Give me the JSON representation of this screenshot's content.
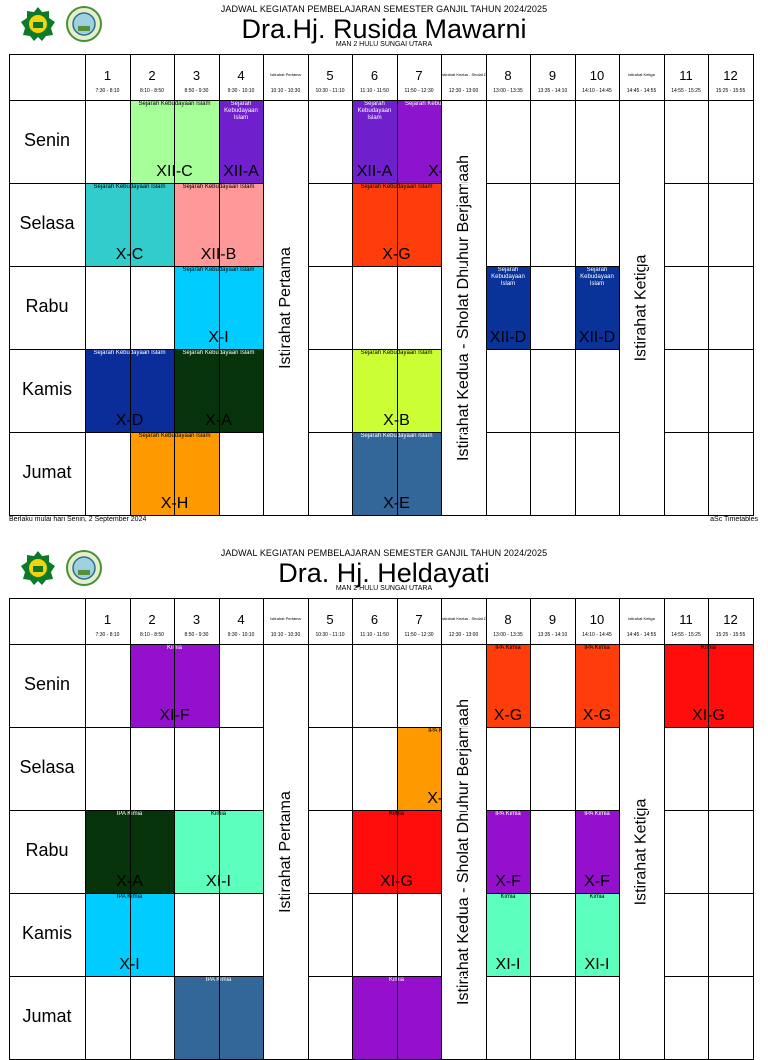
{
  "header_title": "JADWAL KEGIATAN PEMBELAJARAN  SEMESTER GANJIL TAHUN 2024/2025",
  "school": "MAN 2 HULU SUNGAI UTARA",
  "days": [
    "Senin",
    "Selasa",
    "Rabu",
    "Kamis",
    "Jumat"
  ],
  "periods": [
    {
      "label": "1",
      "time": "7:30 - 8:10"
    },
    {
      "label": "2",
      "time": "8:10 - 8:50"
    },
    {
      "label": "3",
      "time": "8:50 - 9:30"
    },
    {
      "label": "4",
      "time": "9:30 - 10:10"
    },
    {
      "break": "Istirahat Pertama",
      "time": "10:10 - 10:30"
    },
    {
      "label": "5",
      "time": "10:30 - 11:10"
    },
    {
      "label": "6",
      "time": "11:10 - 11:50"
    },
    {
      "label": "7",
      "time": "11:50 - 12:30"
    },
    {
      "break": "Istirahat Kedua - Sholat Dhuhur",
      "time": "12:30 - 13:00"
    },
    {
      "label": "8",
      "time": "13:00 - 13:35"
    },
    {
      "label": "9",
      "time": "13:35 - 14:10"
    },
    {
      "label": "10",
      "time": "14:10 - 14:45"
    },
    {
      "break": "Istirahat Ketiga",
      "time": "14:45 - 14:55"
    },
    {
      "label": "11",
      "time": "14:55 - 15:25"
    },
    {
      "label": "12",
      "time": "15:25 - 15:55"
    }
  ],
  "break_labels": {
    "pertama": "Istirahat Pertama",
    "kedua": "Istirahat Kedua - Sholat Dhuhur  Berjamaah",
    "ketiga": "Istirahat Ketiga"
  },
  "footer": {
    "left": "Berlaku mulai hari Senin, 2 September 2024",
    "right": "aSc Timetables"
  },
  "timetables": [
    {
      "teacher": "Dra.Hj. Rusida Mawarni",
      "lessons": [
        {
          "day": 0,
          "col": 1,
          "span": 2,
          "subject": "Sejarah Kebudayaan Islam",
          "class": "XII-C",
          "color": "#a6ff99"
        },
        {
          "day": 0,
          "col": 3,
          "span": 1,
          "subject": "Sejarah Kebudayaan Islam",
          "class": "XII-A",
          "color": "#6f1fcc"
        },
        {
          "day": 0,
          "col": 5,
          "span": 1,
          "subject": "Sejarah Kebudayaan Islam",
          "class": "XII-A",
          "color": "#6f1fcc"
        },
        {
          "day": 0,
          "col": 6,
          "span": 2,
          "subject": "Sejarah Kebudayaan Islam",
          "class": "X-F",
          "color": "#8b14cc"
        },
        {
          "day": 1,
          "col": 0,
          "span": 2,
          "subject": "Sejarah Kebudayaan Islam",
          "class": "X-C",
          "color": "#33cccc"
        },
        {
          "day": 1,
          "col": 2,
          "span": 2,
          "subject": "Sejarah Kebudayaan Islam",
          "class": "XII-B",
          "color": "#ff9999"
        },
        {
          "day": 1,
          "col": 5,
          "span": 2,
          "subject": "Sejarah Kebudayaan Islam",
          "class": "X-G",
          "color": "#ff3d0a"
        },
        {
          "day": 2,
          "col": 2,
          "span": 2,
          "subject": "Sejarah Kebudayaan Islam",
          "class": "X-I",
          "color": "#00ccff"
        },
        {
          "day": 2,
          "col": 7,
          "span": 1,
          "subject": "Sejarah Kebudayaan Islam",
          "class": "XII-D",
          "color": "#0a3399"
        },
        {
          "day": 2,
          "col": 9,
          "span": 1,
          "subject": "Sejarah Kebudayaan Islam",
          "class": "XII-D",
          "color": "#0a3399"
        },
        {
          "day": 3,
          "col": 0,
          "span": 2,
          "subject": "Sejarah Kebudayaan Islam",
          "class": "X-D",
          "color": "#0a2d99"
        },
        {
          "day": 3,
          "col": 2,
          "span": 2,
          "subject": "Sejarah Kebudayaan Islam",
          "class": "X-A",
          "color": "#06330a"
        },
        {
          "day": 3,
          "col": 5,
          "span": 2,
          "subject": "Sejarah Kebudayaan Islam",
          "class": "X-B",
          "color": "#ccff33"
        },
        {
          "day": 4,
          "col": 1,
          "span": 2,
          "subject": "Sejarah Kebudayaan Islam",
          "class": "X-H",
          "color": "#ff9900"
        },
        {
          "day": 4,
          "col": 5,
          "span": 2,
          "subject": "Sejarah Kebudayaan Islam",
          "class": "X-E",
          "color": "#336699"
        }
      ]
    },
    {
      "teacher": "Dra. Hj. Heldayati",
      "lessons": [
        {
          "day": 0,
          "col": 1,
          "span": 2,
          "subject": "Kimia",
          "class": "XI-F",
          "color": "#9410cc"
        },
        {
          "day": 0,
          "col": 7,
          "span": 1,
          "subject": "IPA Kimia",
          "class": "X-G",
          "color": "#ff3d0a"
        },
        {
          "day": 0,
          "col": 9,
          "span": 1,
          "subject": "IPA Kimia",
          "class": "X-G",
          "color": "#ff3d0a"
        },
        {
          "day": 0,
          "col": 10,
          "span": 2,
          "subject": "Kimia",
          "class": "XI-G",
          "color": "#ff0d0d"
        },
        {
          "day": 1,
          "col": 6,
          "span": 2,
          "subject": "IPA Kimia",
          "class": "X-H",
          "color": "#ff9900"
        },
        {
          "day": 2,
          "col": 0,
          "span": 2,
          "subject": "IPA Kimia",
          "class": "X-A",
          "color": "#06330a"
        },
        {
          "day": 2,
          "col": 2,
          "span": 2,
          "subject": "Kimia",
          "class": "XI-I",
          "color": "#5cffbd"
        },
        {
          "day": 2,
          "col": 5,
          "span": 2,
          "subject": "Kimia",
          "class": "XI-G",
          "color": "#ff0d0d"
        },
        {
          "day": 2,
          "col": 7,
          "span": 1,
          "subject": "IPA Kimia",
          "class": "X-F",
          "color": "#9410cc"
        },
        {
          "day": 2,
          "col": 9,
          "span": 1,
          "subject": "IPA Kimia",
          "class": "X-F",
          "color": "#9410cc"
        },
        {
          "day": 3,
          "col": 0,
          "span": 2,
          "subject": "IPA Kimia",
          "class": "X-I",
          "color": "#00ccff"
        },
        {
          "day": 3,
          "col": 7,
          "span": 1,
          "subject": "Kimia",
          "class": "XI-I",
          "color": "#5cffbd"
        },
        {
          "day": 3,
          "col": 9,
          "span": 1,
          "subject": "Kimia",
          "class": "XI-I",
          "color": "#5cffbd"
        },
        {
          "day": 4,
          "col": 2,
          "span": 2,
          "subject": "IPA Kimia",
          "class": "",
          "color": "#336699"
        },
        {
          "day": 4,
          "col": 5,
          "span": 2,
          "subject": "Kimia",
          "class": "",
          "color": "#9410cc"
        }
      ]
    }
  ]
}
